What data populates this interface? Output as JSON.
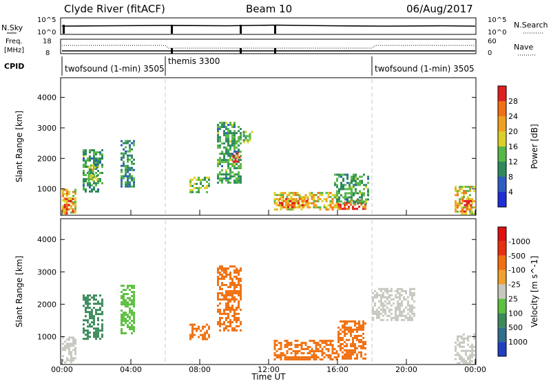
{
  "header": {
    "title": "Clyde River (fitACF)",
    "beam": "Beam 10",
    "date": "06/Aug/2017"
  },
  "noise_panel": {
    "left_label": "N.Sky",
    "right_label": "N.Search",
    "left_ticks": [
      "10^5",
      "10^0"
    ],
    "right_ticks": [
      "10^5",
      "10^0"
    ]
  },
  "freq_panel": {
    "left_label_line1": "Freq.",
    "left_label_line2": "[MHz]",
    "left_ticks": [
      "18",
      "8"
    ],
    "right_ticks": [
      "60",
      "0"
    ],
    "right_label": "Nave"
  },
  "cpid": {
    "label": "CPID",
    "segments": [
      {
        "name": "twofsound (1-min) 3505",
        "start_hour": 0
      },
      {
        "name": "themis 3300",
        "start_hour": 6
      },
      {
        "name": "twofsound (1-min) 3505",
        "start_hour": 18
      }
    ]
  },
  "chart_data": [
    {
      "type": "heatmap",
      "panel": "power",
      "xlabel": "",
      "ylabel": "Slant Range [km]",
      "xlim": [
        0,
        24
      ],
      "ylim": [
        180,
        4600
      ],
      "yticks": [
        "1000",
        "2000",
        "3000",
        "4000"
      ],
      "colorbar": {
        "label": "Power [dB]",
        "ticks": [
          "4",
          "8",
          "12",
          "16",
          "20",
          "24",
          "28"
        ],
        "colors": [
          "#1f2fd6",
          "#2e5cc0",
          "#2e8a5c",
          "#56b848",
          "#dcd028",
          "#f0a020",
          "#f07018",
          "#e02020"
        ]
      },
      "regions": [
        {
          "x": [
            0.0,
            0.8
          ],
          "y": [
            200,
            1000
          ],
          "value": 20
        },
        {
          "x": [
            0.1,
            0.6
          ],
          "y": [
            200,
            700
          ],
          "value": 26
        },
        {
          "x": [
            1.2,
            2.4
          ],
          "y": [
            900,
            2300
          ],
          "value": 12
        },
        {
          "x": [
            1.5,
            2.0
          ],
          "y": [
            1200,
            1800
          ],
          "value": 16
        },
        {
          "x": [
            3.4,
            4.2
          ],
          "y": [
            1100,
            2600
          ],
          "value": 10
        },
        {
          "x": [
            7.4,
            8.6
          ],
          "y": [
            900,
            1400
          ],
          "value": 14
        },
        {
          "x": [
            9.0,
            10.4
          ],
          "y": [
            1200,
            3200
          ],
          "value": 12
        },
        {
          "x": [
            9.9,
            10.3
          ],
          "y": [
            1900,
            2200
          ],
          "value": 28
        },
        {
          "x": [
            10.5,
            11.0
          ],
          "y": [
            2500,
            2900
          ],
          "value": 14
        },
        {
          "x": [
            12.3,
            16.0
          ],
          "y": [
            300,
            900
          ],
          "value": 20
        },
        {
          "x": [
            12.6,
            14.2
          ],
          "y": [
            400,
            700
          ],
          "value": 24
        },
        {
          "x": [
            16.0,
            17.6
          ],
          "y": [
            350,
            650
          ],
          "value": 28
        },
        {
          "x": [
            15.8,
            17.8
          ],
          "y": [
            500,
            1500
          ],
          "value": 12
        },
        {
          "x": [
            22.8,
            24.0
          ],
          "y": [
            200,
            1100
          ],
          "value": 20
        },
        {
          "x": [
            23.1,
            23.8
          ],
          "y": [
            250,
            700
          ],
          "value": 26
        }
      ]
    },
    {
      "type": "heatmap",
      "panel": "velocity",
      "xlabel": "Time UT",
      "ylabel": "Slant Range [km]",
      "xlim": [
        0,
        24
      ],
      "ylim": [
        180,
        4600
      ],
      "xticks": [
        "00:00",
        "04:00",
        "08:00",
        "12:00",
        "16:00",
        "20:00",
        "00:00"
      ],
      "yticks": [
        "1000",
        "2000",
        "3000",
        "4000"
      ],
      "colorbar": {
        "label": "Velocity [m s^-1]",
        "ticks": [
          "1000",
          "500",
          "100",
          "25",
          "-25",
          "-100",
          "-500",
          "-1000"
        ],
        "colors": [
          "#2040c0",
          "#2e6e8e",
          "#3a8a5a",
          "#5cc040",
          "#c8c8c0",
          "#f0a030",
          "#f07010",
          "#e83010",
          "#e01010"
        ]
      },
      "regions": [
        {
          "x": [
            0.0,
            0.8
          ],
          "y": [
            200,
            1000
          ],
          "value": 0
        },
        {
          "x": [
            1.2,
            2.4
          ],
          "y": [
            900,
            2300
          ],
          "value": 300
        },
        {
          "x": [
            3.4,
            4.2
          ],
          "y": [
            1100,
            2600
          ],
          "value": 80
        },
        {
          "x": [
            7.4,
            8.6
          ],
          "y": [
            900,
            1400
          ],
          "value": -300
        },
        {
          "x": [
            9.0,
            10.4
          ],
          "y": [
            1200,
            3200
          ],
          "value": -300
        },
        {
          "x": [
            12.3,
            16.0
          ],
          "y": [
            300,
            900
          ],
          "value": -400
        },
        {
          "x": [
            16.0,
            17.6
          ],
          "y": [
            350,
            1500
          ],
          "value": -400
        },
        {
          "x": [
            18.0,
            20.5
          ],
          "y": [
            1500,
            2500
          ],
          "value": 0
        },
        {
          "x": [
            22.8,
            24.0
          ],
          "y": [
            200,
            1100
          ],
          "value": 0
        }
      ]
    }
  ],
  "colors": {
    "dashed_marker": "#c8c8c8"
  }
}
